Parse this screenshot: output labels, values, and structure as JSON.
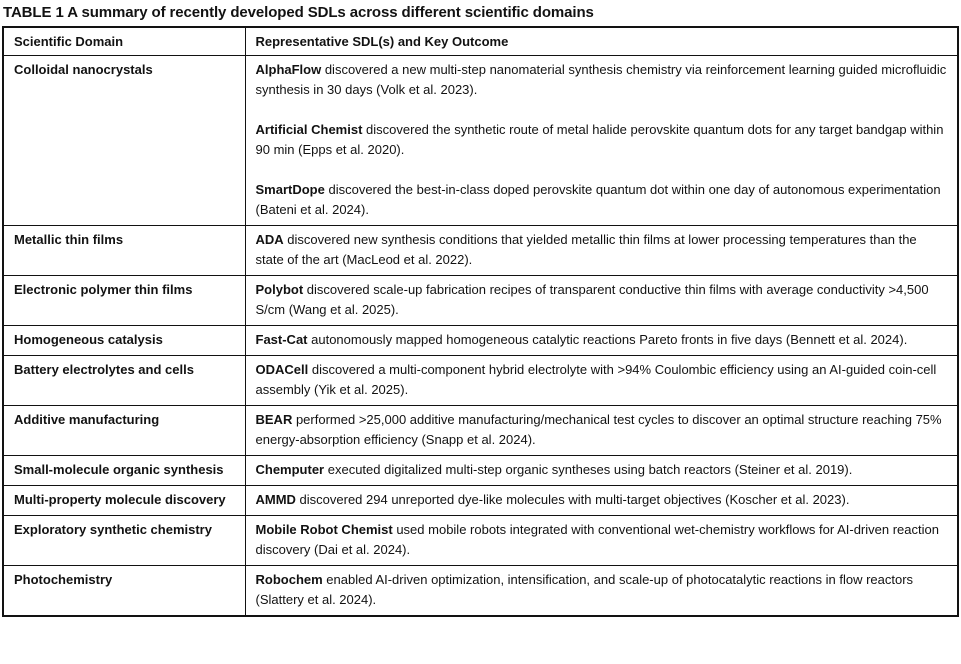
{
  "title": "TABLE 1 A summary of recently developed SDLs across different scientific domains",
  "colors": {
    "background": "#ffffff",
    "text": "#121212",
    "border": "#121212"
  },
  "table": {
    "columns": [
      "Scientific Domain",
      "Representative SDL(s) and Key Outcome"
    ],
    "rows": [
      {
        "domain": "Colloidal nanocrystals",
        "entries": [
          {
            "sdl": "AlphaFlow",
            "outcome": "discovered a new multi-step nanomaterial synthesis chemistry via reinforcement learning guided microfluidic synthesis in 30 days (Volk et al. 2023)."
          },
          {
            "sdl": "Artificial Chemist",
            "outcome": "discovered the synthetic route of metal halide perovskite quantum dots for any target bandgap within 90 min (Epps et al. 2020)."
          },
          {
            "sdl": "SmartDope",
            "outcome": "discovered the best-in-class doped perovskite quantum dot within one day of autonomous experimentation (Bateni et al. 2024)."
          }
        ]
      },
      {
        "domain": "Metallic thin films",
        "entries": [
          {
            "sdl": "ADA",
            "outcome": "discovered new synthesis conditions that yielded metallic thin films at lower processing temperatures than the state of the art (MacLeod et al. 2022)."
          }
        ]
      },
      {
        "domain": "Electronic polymer thin films",
        "entries": [
          {
            "sdl": "Polybot",
            "outcome": "discovered scale-up fabrication recipes of transparent conductive thin films with average conductivity >4,500 S/cm (Wang et al. 2025)."
          }
        ]
      },
      {
        "domain": "Homogeneous catalysis",
        "entries": [
          {
            "sdl": "Fast-Cat",
            "outcome": "autonomously mapped homogeneous catalytic reactions Pareto fronts in five days (Bennett et al. 2024)."
          }
        ]
      },
      {
        "domain": "Battery electrolytes and cells",
        "entries": [
          {
            "sdl": "ODACell",
            "outcome": "discovered a multi-component hybrid electrolyte with >94% Coulombic efficiency using an AI-guided coin-cell assembly (Yik et al. 2025)."
          }
        ]
      },
      {
        "domain": "Additive manufacturing",
        "entries": [
          {
            "sdl": "BEAR",
            "outcome": "performed >25,000 additive manufacturing/mechanical test cycles to discover an optimal structure reaching 75% energy-absorption efficiency (Snapp et al. 2024)."
          }
        ]
      },
      {
        "domain": "Small-molecule organic synthesis",
        "entries": [
          {
            "sdl": "Chemputer",
            "outcome": "executed digitalized multi-step organic syntheses using batch reactors (Steiner et al. 2019)."
          }
        ]
      },
      {
        "domain": "Multi-property molecule discovery",
        "entries": [
          {
            "sdl": "AMMD",
            "outcome": "discovered 294 unreported dye-like molecules with multi-target objectives (Koscher et al. 2023)."
          }
        ]
      },
      {
        "domain": "Exploratory synthetic chemistry",
        "entries": [
          {
            "sdl": "Mobile Robot Chemist",
            "outcome": "used mobile robots integrated with conventional wet-chemistry workflows for AI-driven reaction discovery (Dai et al. 2024)."
          }
        ]
      },
      {
        "domain": "Photochemistry",
        "entries": [
          {
            "sdl": "Robochem",
            "outcome": "enabled AI-driven optimization, intensification, and scale-up of photocatalytic reactions in flow reactors (Slattery et al. 2024)."
          }
        ]
      }
    ]
  }
}
